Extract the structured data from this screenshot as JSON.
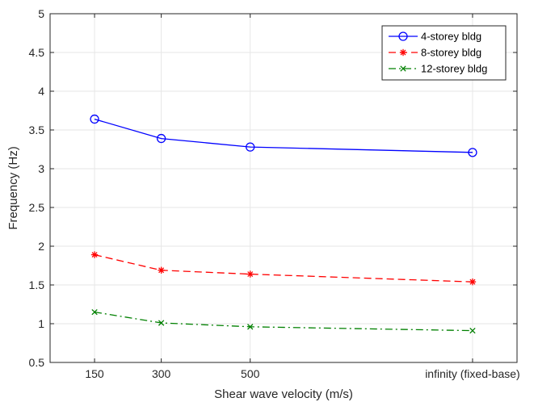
{
  "chart_data": {
    "type": "line",
    "title": "",
    "xlabel": "Shear wave velocity (m/s)",
    "ylabel": "Frequency (Hz)",
    "categories": [
      "150",
      "300",
      "500",
      "infinity (fixed-base)"
    ],
    "x": [
      150,
      300,
      500,
      1000
    ],
    "xlim": [
      50,
      1100
    ],
    "ylim": [
      0.5,
      5
    ],
    "yticks": [
      "0.5",
      "1",
      "1.5",
      "2",
      "2.5",
      "3",
      "3.5",
      "4",
      "4.5",
      "5"
    ],
    "grid": true,
    "legend_position": "top-right",
    "series": [
      {
        "name": "4-storey bldg",
        "values": [
          3.64,
          3.39,
          3.28,
          3.21
        ],
        "color": "#0000ff",
        "dash": "solid",
        "marker": "circle"
      },
      {
        "name": "8-storey bldg",
        "values": [
          1.89,
          1.69,
          1.64,
          1.54
        ],
        "color": "#ff0000",
        "dash": "dashed",
        "marker": "asterisk"
      },
      {
        "name": "12-storey bldg",
        "values": [
          1.15,
          1.01,
          0.96,
          0.91
        ],
        "color": "#008000",
        "dash": "dashdot",
        "marker": "x"
      }
    ]
  }
}
